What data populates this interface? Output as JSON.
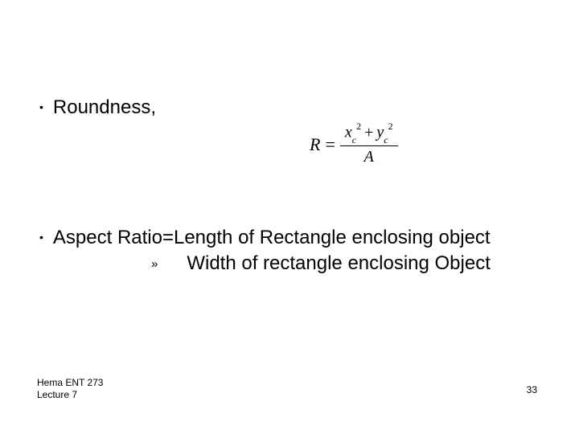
{
  "bullets": {
    "roundness": "Roundness,",
    "aspect": "Aspect Ratio=Length of Rectangle enclosing object",
    "aspect_sub": "Width of rectangle enclosing Object"
  },
  "formula": {
    "lhs": "R",
    "eq": "=",
    "num_x_var": "x",
    "num_x_sub": "c",
    "num_x_sup": "2",
    "num_plus": "+",
    "num_y_var": "y",
    "num_y_sub": "c",
    "num_y_sup": "2",
    "den": "A"
  },
  "footer": {
    "author": "Hema   ENT 273",
    "lecture": "Lecture 7",
    "page": "33"
  },
  "style": {
    "bg": "#ffffff",
    "text_color": "#000000",
    "body_fontsize": 24,
    "footer_fontsize": 12,
    "formula_fontsize": 22
  }
}
